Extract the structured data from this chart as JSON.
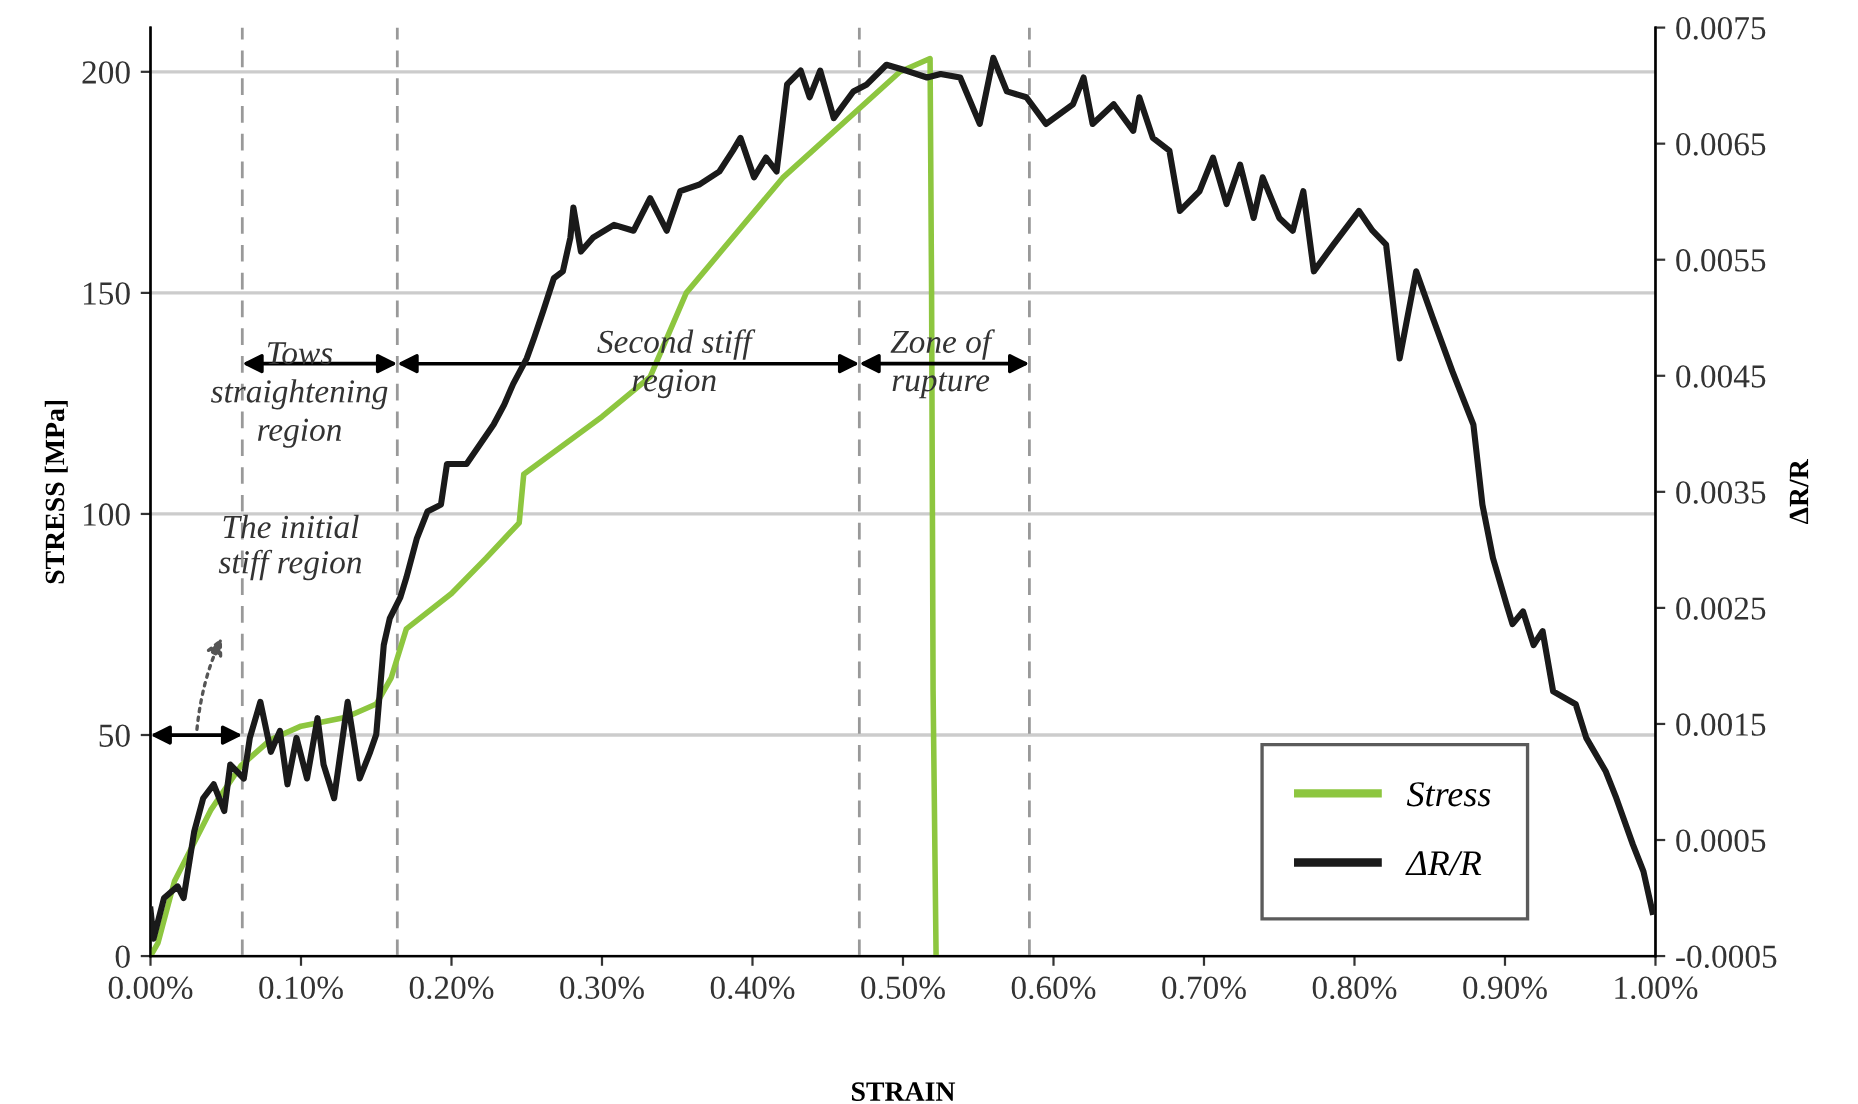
{
  "chart_data": {
    "type": "line",
    "xlabel": "STRAIN",
    "ylabel": "STRESS [MPa]",
    "y2label": "ΔR/R",
    "xlim": [
      0,
      1.0
    ],
    "xticks": [
      {
        "value": 0,
        "label": "0.00%"
      },
      {
        "value": 0.1,
        "label": "0.10%"
      },
      {
        "value": 0.2,
        "label": "0.20%"
      },
      {
        "value": 0.3,
        "label": "0.30%"
      },
      {
        "value": 0.4,
        "label": "0.40%"
      },
      {
        "value": 0.5,
        "label": "0.50%"
      },
      {
        "value": 0.6,
        "label": "0.60%"
      },
      {
        "value": 0.7,
        "label": "0.70%"
      },
      {
        "value": 0.8,
        "label": "0.80%"
      },
      {
        "value": 0.9,
        "label": "0.90%"
      },
      {
        "value": 1.0,
        "label": "1.00%"
      }
    ],
    "ylim": [
      0,
      210
    ],
    "yticks": [
      0,
      50,
      100,
      150,
      200
    ],
    "y2lim": [
      -0.0005,
      0.0075
    ],
    "y2ticks": [
      -0.0005,
      0.0005,
      0.0015,
      0.0025,
      0.0035,
      0.0045,
      0.0055,
      0.0065,
      0.0075
    ],
    "grid": "y",
    "legend": "bottom right",
    "series": [
      {
        "name": "Stress",
        "color": "#8dc63f",
        "x": [
          0,
          0.005,
          0.016,
          0.04,
          0.06,
          0.08,
          0.1,
          0.13,
          0.15,
          0.16,
          0.17,
          0.2,
          0.223,
          0.245,
          0.248,
          0.3,
          0.332,
          0.356,
          0.42,
          0.498,
          0.518,
          0.519,
          0.52,
          0.522
        ],
        "values": [
          0,
          3,
          17,
          33,
          43,
          49,
          52,
          54,
          57,
          63,
          74,
          82,
          90,
          98,
          109,
          122,
          131,
          150,
          176,
          200,
          203,
          150,
          60,
          0
        ]
      },
      {
        "name": "ΔR/R",
        "color": "#1a1a1a",
        "axis": "y2",
        "x": [
          0,
          0.002,
          0.009,
          0.018,
          0.022,
          0.029,
          0.035,
          0.042,
          0.049,
          0.053,
          0.062,
          0.066,
          0.073,
          0.08,
          0.086,
          0.091,
          0.097,
          0.104,
          0.111,
          0.115,
          0.122,
          0.131,
          0.139,
          0.146,
          0.15,
          0.155,
          0.159,
          0.166,
          0.17,
          0.177,
          0.184,
          0.193,
          0.197,
          0.21,
          0.219,
          0.228,
          0.235,
          0.241,
          0.25,
          0.255,
          0.261,
          0.268,
          0.274,
          0.279,
          0.281,
          0.286,
          0.294,
          0.308,
          0.321,
          0.332,
          0.343,
          0.352,
          0.365,
          0.378,
          0.387,
          0.392,
          0.401,
          0.409,
          0.416,
          0.423,
          0.432,
          0.438,
          0.445,
          0.454,
          0.467,
          0.476,
          0.489,
          0.502,
          0.516,
          0.525,
          0.538,
          0.551,
          0.56,
          0.569,
          0.582,
          0.595,
          0.613,
          0.62,
          0.626,
          0.64,
          0.653,
          0.657,
          0.666,
          0.677,
          0.684,
          0.697,
          0.706,
          0.715,
          0.724,
          0.733,
          0.739,
          0.75,
          0.759,
          0.766,
          0.773,
          0.786,
          0.803,
          0.812,
          0.821,
          0.83,
          0.841,
          0.852,
          0.865,
          0.879,
          0.885,
          0.892,
          0.901,
          0.905,
          0.912,
          0.919,
          0.925,
          0.932,
          0.947,
          0.954,
          0.967,
          0.974,
          0.985,
          0.992,
          0.998
        ],
        "values": [
          -0.0001,
          -0.00035,
          0.0,
          0.0001,
          0.0,
          0.00057,
          0.00086,
          0.00098,
          0.00075,
          0.00115,
          0.00103,
          0.00138,
          0.00169,
          0.00126,
          0.00144,
          0.00098,
          0.00138,
          0.00103,
          0.00155,
          0.00115,
          0.00086,
          0.00169,
          0.00103,
          0.00126,
          0.00141,
          0.00218,
          0.00241,
          0.00259,
          0.00276,
          0.0031,
          0.00333,
          0.00339,
          0.00374,
          0.00374,
          0.00391,
          0.00408,
          0.00425,
          0.00443,
          0.00465,
          0.00483,
          0.00506,
          0.00534,
          0.0054,
          0.00569,
          0.00595,
          0.00557,
          0.00569,
          0.0058,
          0.00575,
          0.00603,
          0.00575,
          0.00609,
          0.00615,
          0.00626,
          0.00644,
          0.00655,
          0.00621,
          0.00638,
          0.00626,
          0.00701,
          0.00713,
          0.0069,
          0.00713,
          0.00672,
          0.00695,
          0.00701,
          0.00718,
          0.00713,
          0.00707,
          0.0071,
          0.00707,
          0.00667,
          0.00724,
          0.00695,
          0.0069,
          0.00667,
          0.00684,
          0.00707,
          0.00667,
          0.00684,
          0.00661,
          0.0069,
          0.00655,
          0.00644,
          0.00592,
          0.00609,
          0.00638,
          0.00598,
          0.00632,
          0.00586,
          0.00621,
          0.00586,
          0.00575,
          0.00609,
          0.0054,
          0.00563,
          0.00592,
          0.00575,
          0.00563,
          0.00465,
          0.0054,
          0.005,
          0.00454,
          0.00408,
          0.00339,
          0.00293,
          0.00253,
          0.00236,
          0.00247,
          0.00218,
          0.0023,
          0.00178,
          0.00167,
          0.00138,
          0.00109,
          0.00086,
          0.00046,
          0.00023,
          -0.00012
        ]
      }
    ],
    "ref_lines": [
      {
        "axis": "x",
        "value": 0.061,
        "color": "#999999",
        "line_style": "dashed"
      },
      {
        "axis": "x",
        "value": 0.164,
        "color": "#999999",
        "line_style": "dashed"
      },
      {
        "axis": "x",
        "value": 0.471,
        "color": "#999999",
        "line_style": "dashed"
      },
      {
        "axis": "x",
        "value": 0.584,
        "color": "#999999",
        "line_style": "dashed"
      }
    ],
    "annotations": [
      "The initial\nstiff region",
      {
        "text": "Tows\nstraightening\nregion",
        "x": 0.164,
        "y": 134
      },
      "Second stiff\nregion",
      {
        "text": "Zone of\nrupture",
        "x": 0.584,
        "y": 134
      }
    ]
  }
}
